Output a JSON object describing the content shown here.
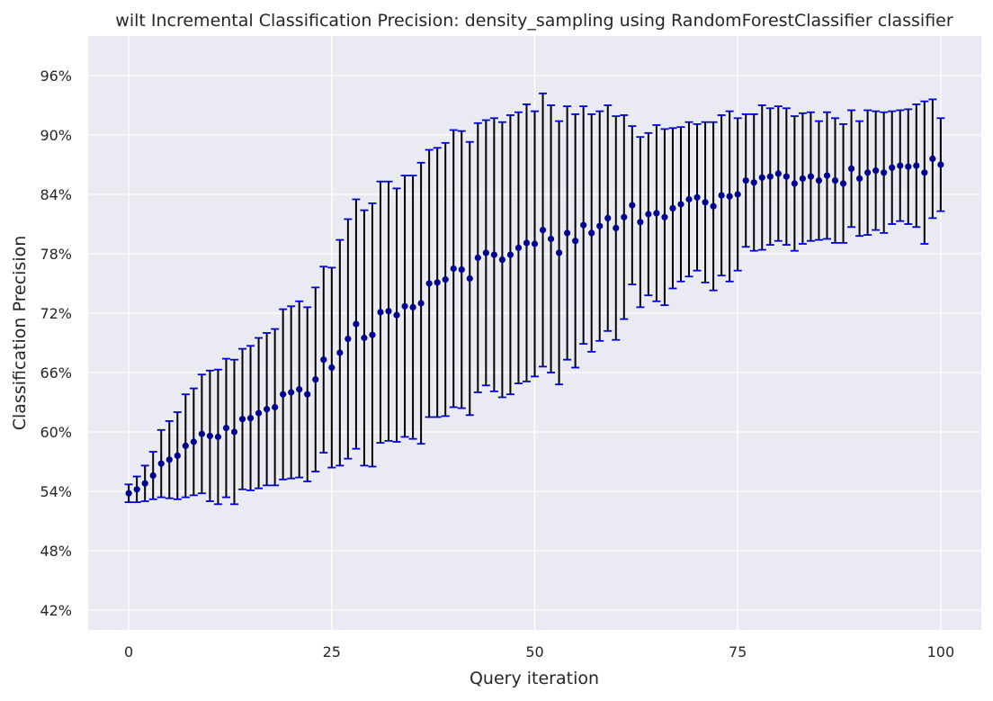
{
  "chart_data": {
    "type": "scatter",
    "title": "wilt Incremental Classification Precision: density_sampling using RandomForestClassifier classifier",
    "xlabel": "Query iteration",
    "ylabel": "Classification Precision",
    "xlim": [
      -5,
      105
    ],
    "ylim": [
      40,
      100
    ],
    "xticks": [
      0,
      25,
      50,
      75,
      100
    ],
    "yticks": [
      42,
      48,
      54,
      60,
      66,
      72,
      78,
      84,
      90,
      96
    ],
    "ytick_labels": [
      "42%",
      "48%",
      "54%",
      "60%",
      "66%",
      "72%",
      "78%",
      "84%",
      "90%",
      "96%"
    ],
    "grid": true,
    "legend": "none",
    "colors": {
      "background": "#eaeaf2",
      "grid": "#ffffff",
      "point": "#00008b",
      "errorbar": "#000000",
      "cap": "#0000cd"
    },
    "series": [
      {
        "x": [
          0,
          1,
          2,
          3,
          4,
          5,
          6,
          7,
          8,
          9,
          10,
          11,
          12,
          13,
          14,
          15,
          16,
          17,
          18,
          19,
          20,
          21,
          22,
          23,
          24,
          25,
          26,
          27,
          28,
          29,
          30,
          31,
          32,
          33,
          34,
          35,
          36,
          37,
          38,
          39,
          40,
          41,
          42,
          43,
          44,
          45,
          46,
          47,
          48,
          49,
          50,
          51,
          52,
          53,
          54,
          55,
          56,
          57,
          58,
          59,
          60,
          61,
          62,
          63,
          64,
          65,
          66,
          67,
          68,
          69,
          70,
          71,
          72,
          73,
          74,
          75,
          76,
          77,
          78,
          79,
          80,
          81,
          82,
          83,
          84,
          85,
          86,
          87,
          88,
          89,
          90,
          91,
          92,
          93,
          94,
          95,
          96,
          97,
          98,
          99,
          100
        ],
        "y": [
          53.8,
          54.2,
          54.8,
          55.6,
          56.8,
          57.2,
          57.6,
          58.6,
          59.0,
          59.8,
          59.6,
          59.5,
          60.4,
          60.0,
          61.3,
          61.4,
          61.9,
          62.3,
          62.5,
          63.8,
          64.0,
          64.3,
          63.8,
          65.3,
          67.3,
          66.5,
          68.0,
          69.4,
          70.9,
          69.5,
          69.8,
          72.1,
          72.2,
          71.8,
          72.7,
          72.6,
          73.0,
          75.0,
          75.1,
          75.4,
          76.5,
          76.4,
          75.5,
          77.6,
          78.1,
          77.9,
          77.4,
          77.9,
          78.6,
          79.1,
          79.0,
          80.4,
          79.5,
          78.1,
          80.1,
          79.3,
          80.9,
          80.1,
          80.8,
          81.6,
          80.6,
          81.7,
          82.9,
          81.2,
          82.0,
          82.1,
          81.7,
          82.6,
          83.0,
          83.5,
          83.7,
          83.2,
          82.8,
          83.9,
          83.8,
          84.0,
          85.4,
          85.2,
          85.7,
          85.8,
          86.1,
          85.8,
          85.1,
          85.6,
          85.8,
          85.4,
          85.9,
          85.4,
          85.1,
          86.6,
          85.6,
          86.2,
          86.4,
          86.2,
          86.7,
          86.9,
          86.8,
          86.9,
          86.2,
          87.6,
          87.0
        ],
        "err": [
          0.9,
          1.3,
          1.8,
          2.4,
          3.4,
          3.9,
          4.4,
          5.2,
          5.4,
          6.0,
          6.6,
          6.8,
          7.0,
          7.3,
          7.1,
          7.3,
          7.6,
          7.7,
          7.9,
          8.6,
          8.7,
          8.9,
          8.8,
          9.3,
          9.4,
          10.1,
          11.4,
          12.1,
          12.6,
          12.9,
          13.3,
          13.2,
          13.1,
          12.8,
          13.2,
          13.3,
          14.2,
          13.5,
          13.6,
          13.8,
          14.0,
          14.0,
          13.8,
          13.6,
          13.4,
          13.8,
          13.9,
          14.1,
          13.7,
          14.0,
          13.4,
          13.8,
          13.5,
          13.3,
          12.8,
          12.8,
          12.0,
          12.0,
          11.6,
          11.4,
          11.3,
          10.3,
          8.0,
          8.6,
          8.2,
          8.9,
          8.9,
          8.1,
          7.8,
          7.8,
          7.4,
          8.1,
          8.5,
          8.1,
          8.6,
          7.7,
          6.7,
          6.9,
          7.3,
          6.9,
          6.8,
          6.9,
          6.8,
          6.6,
          6.5,
          6.0,
          6.4,
          6.3,
          6.0,
          5.9,
          5.8,
          6.3,
          6.0,
          6.1,
          5.7,
          5.6,
          5.8,
          6.2,
          7.2,
          6.0,
          4.7
        ]
      }
    ]
  }
}
